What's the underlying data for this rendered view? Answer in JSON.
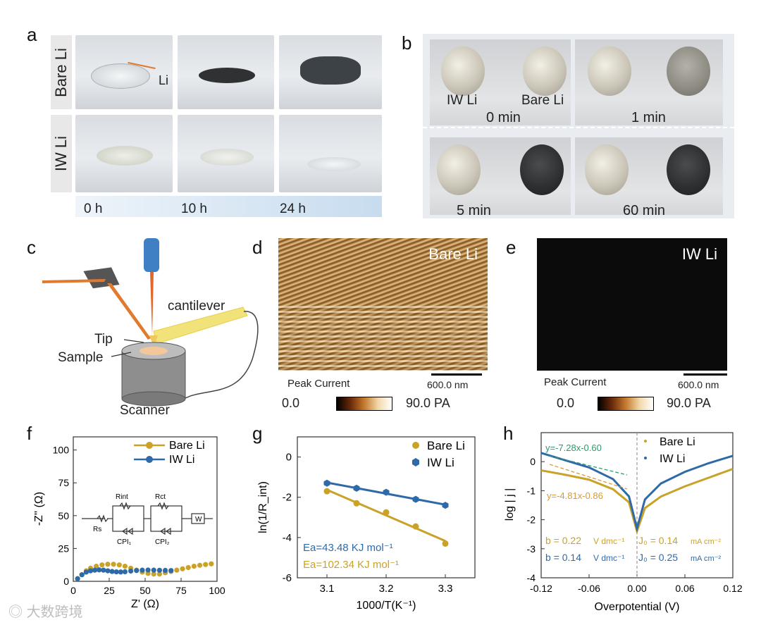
{
  "panel_labels": {
    "a": "a",
    "b": "b",
    "c": "c",
    "d": "d",
    "e": "e",
    "f": "f",
    "g": "g",
    "h": "h"
  },
  "panel_a": {
    "row_labels": [
      "Bare Li",
      "IW Li"
    ],
    "li_annotation": "Li",
    "times": [
      "0 h",
      "10 h",
      "24 h"
    ]
  },
  "panel_b": {
    "coin_labels": [
      "IW Li",
      "Bare Li"
    ],
    "times": [
      "0 min",
      "1 min",
      "5 min",
      "60 min"
    ]
  },
  "panel_c": {
    "labels": {
      "cantilever": "cantilever",
      "tip": "Tip",
      "sample": "Sample",
      "scanner": "Scanner"
    }
  },
  "panel_d": {
    "title": "Bare Li",
    "scalebar": "600.0 nm",
    "colorbar_label": "Peak Current",
    "colorbar_min": "0.0",
    "colorbar_max": "90.0 PA"
  },
  "panel_e": {
    "title": "IW Li",
    "scalebar": "600.0 nm",
    "colorbar_label": "Peak Current",
    "colorbar_min": "0.0",
    "colorbar_max": "90.0 PA"
  },
  "colors": {
    "bare": "#c9a227",
    "iw": "#2f6aa8",
    "fit_green": "#2e9a6a",
    "fit_orange": "#d99a3a"
  },
  "chart_data": [
    {
      "id": "f",
      "type": "scatter",
      "xlabel": "Z' (Ω)",
      "ylabel": "-Z'' (Ω)",
      "xlim": [
        0,
        100
      ],
      "ylim": [
        0,
        110
      ],
      "xticks": [
        "0",
        "25",
        "50",
        "75",
        "100"
      ],
      "yticks": [
        "0",
        "25",
        "50",
        "75",
        "100"
      ],
      "circuit_labels": {
        "rs": "Rs",
        "rint": "Rint",
        "rct": "Rct",
        "cpe1": "CPI₁",
        "cpe2": "CPI₂",
        "w": "W"
      },
      "series": [
        {
          "name": "Bare Li",
          "x": [
            3,
            6,
            9,
            12,
            16,
            20,
            24,
            28,
            32,
            36,
            40,
            44,
            48,
            52,
            56,
            60,
            64,
            68,
            72,
            76,
            80,
            84,
            88,
            92,
            96
          ],
          "y": [
            2,
            5,
            8,
            10,
            11.5,
            12.5,
            13,
            13,
            12.5,
            11.5,
            10,
            8.5,
            7,
            6,
            5.5,
            5.5,
            6.5,
            7.5,
            8.5,
            9.5,
            10.5,
            11.5,
            12.2,
            12.8,
            13.3
          ]
        },
        {
          "name": "IW Li",
          "x": [
            3,
            6,
            9,
            12,
            15,
            18,
            21,
            24,
            27,
            30,
            33,
            36,
            40,
            44,
            48,
            52,
            56,
            60,
            64,
            68
          ],
          "y": [
            2,
            5,
            7,
            8,
            8.5,
            8.7,
            8.5,
            8,
            7.5,
            7.2,
            7.1,
            7.3,
            7.8,
            8.2,
            8.5,
            8.6,
            8.5,
            8.4,
            8.3,
            8.2
          ]
        }
      ]
    },
    {
      "id": "g",
      "type": "scatter",
      "xlabel": "1000/T(K⁻¹)",
      "ylabel": "ln(1/R_int)",
      "xlim": [
        3.05,
        3.35
      ],
      "ylim": [
        -6,
        1
      ],
      "xticks": [
        "3.1",
        "3.2",
        "3.3"
      ],
      "yticks": [
        "0",
        "-2",
        "-4",
        "-6"
      ],
      "series": [
        {
          "name": "Bare Li",
          "x": [
            3.1,
            3.15,
            3.2,
            3.25,
            3.3
          ],
          "y": [
            -1.7,
            -2.3,
            -2.75,
            -3.45,
            -4.3
          ]
        },
        {
          "name": "IW Li",
          "x": [
            3.1,
            3.15,
            3.2,
            3.25,
            3.3
          ],
          "y": [
            -1.3,
            -1.55,
            -1.75,
            -2.1,
            -2.4
          ]
        }
      ],
      "annotations": [
        "Ea=43.48 KJ mol⁻¹",
        "Ea=102.34 KJ mol⁻¹"
      ]
    },
    {
      "id": "h",
      "type": "line",
      "xlabel": "Overpotential (V)",
      "ylabel": "log | j |",
      "xlim": [
        -0.12,
        0.12
      ],
      "ylim": [
        -4,
        1
      ],
      "xticks": [
        "-0.12",
        "-0.06",
        "0.00",
        "0.06",
        "0.12"
      ],
      "yticks": [
        "0",
        "-1",
        "-2",
        "-3",
        "-4"
      ],
      "series": [
        {
          "name": "Bare Li",
          "x": [
            -0.12,
            -0.09,
            -0.06,
            -0.03,
            -0.01,
            0,
            0.01,
            0.03,
            0.06,
            0.09,
            0.12
          ],
          "y": [
            -0.3,
            -0.45,
            -0.62,
            -0.95,
            -1.4,
            -2.4,
            -1.6,
            -1.2,
            -0.85,
            -0.55,
            -0.25
          ]
        },
        {
          "name": "IW Li",
          "x": [
            -0.12,
            -0.09,
            -0.06,
            -0.03,
            -0.01,
            0,
            0.01,
            0.03,
            0.06,
            0.09,
            0.12
          ],
          "y": [
            0.3,
            0.05,
            -0.2,
            -0.6,
            -1.2,
            -2.3,
            -1.3,
            -0.75,
            -0.35,
            -0.05,
            0.2
          ]
        }
      ],
      "annotations": {
        "fit_green": "y=-7.28x-0.60",
        "fit_orange": "y=-4.81x-0.86",
        "b_bare": "b = 0.22",
        "j0_bare": "J₀ = 0.14",
        "b_iw": "b = 0.14",
        "j0_iw": "J₀ = 0.25",
        "b_unit": "V dmc⁻¹",
        "j0_unit": "mA cm⁻²"
      }
    }
  ],
  "watermark": "大数跨境"
}
